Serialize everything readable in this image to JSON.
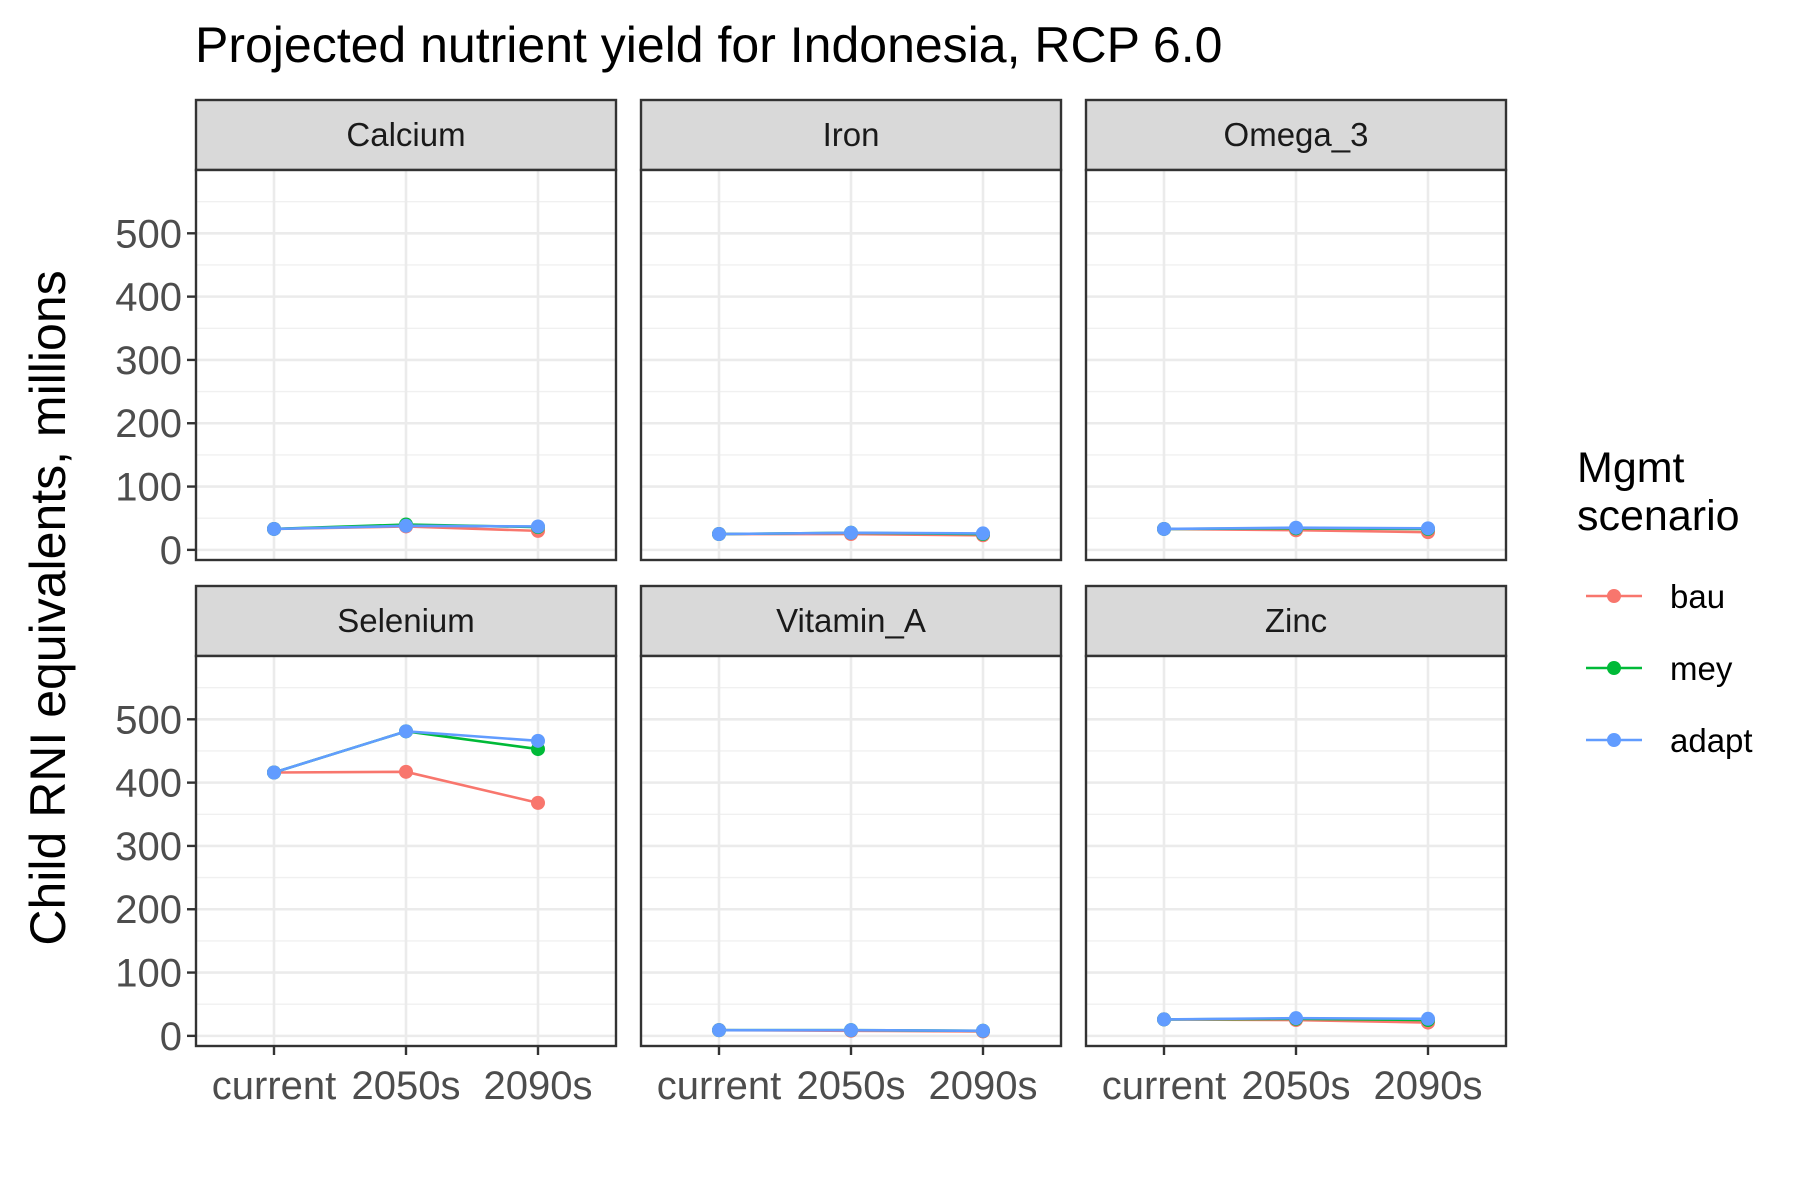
{
  "chart_data": {
    "type": "line",
    "title": "Projected nutrient yield for Indonesia, RCP 6.0",
    "ylabel": "Child RNI equivalents, millions",
    "xlabel": "",
    "categories": [
      "current",
      "2050s",
      "2090s"
    ],
    "y_ticks": [
      0,
      100,
      200,
      300,
      400,
      500
    ],
    "ylim": [
      -16,
      600
    ],
    "grid": true,
    "legend": {
      "title": "Mgmt\nscenario",
      "placement": "right",
      "entries": [
        {
          "name": "bau",
          "color": "#F8766D"
        },
        {
          "name": "mey",
          "color": "#00BA38"
        },
        {
          "name": "adapt",
          "color": "#619CFF"
        }
      ]
    },
    "panels": [
      {
        "name": "Calcium",
        "series": [
          {
            "name": "bau",
            "values": [
              33,
              37,
              30
            ]
          },
          {
            "name": "mey",
            "values": [
              33,
              40,
              36
            ]
          },
          {
            "name": "adapt",
            "values": [
              33,
              38,
              37
            ]
          }
        ]
      },
      {
        "name": "Iron",
        "series": [
          {
            "name": "bau",
            "values": [
              25,
              25,
              23
            ]
          },
          {
            "name": "mey",
            "values": [
              25,
              27,
              25
            ]
          },
          {
            "name": "adapt",
            "values": [
              25,
              27,
              26
            ]
          }
        ]
      },
      {
        "name": "Omega_3",
        "series": [
          {
            "name": "bau",
            "values": [
              33,
              31,
              28
            ]
          },
          {
            "name": "mey",
            "values": [
              33,
              34,
              33
            ]
          },
          {
            "name": "adapt",
            "values": [
              33,
              35,
              34
            ]
          }
        ]
      },
      {
        "name": "Selenium",
        "series": [
          {
            "name": "bau",
            "values": [
              416,
              417,
              368
            ]
          },
          {
            "name": "mey",
            "values": [
              416,
              481,
              453
            ]
          },
          {
            "name": "adapt",
            "values": [
              416,
              481,
              466
            ]
          }
        ]
      },
      {
        "name": "Vitamin_A",
        "series": [
          {
            "name": "bau",
            "values": [
              9,
              8,
              7
            ]
          },
          {
            "name": "mey",
            "values": [
              9,
              9,
              8
            ]
          },
          {
            "name": "adapt",
            "values": [
              9,
              9,
              8
            ]
          }
        ]
      },
      {
        "name": "Zinc",
        "series": [
          {
            "name": "bau",
            "values": [
              26,
              25,
              21
            ]
          },
          {
            "name": "mey",
            "values": [
              26,
              27,
              25
            ]
          },
          {
            "name": "adapt",
            "values": [
              26,
              28,
              27
            ]
          }
        ]
      }
    ]
  }
}
